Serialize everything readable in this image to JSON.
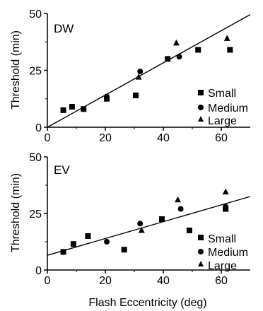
{
  "chart_data": [
    {
      "type": "scatter",
      "panel_label": "DW",
      "xlabel": "",
      "ylabel": "Threshold (min)",
      "xlim": [
        0,
        70
      ],
      "ylim": [
        0,
        50
      ],
      "x_ticks": [
        "0",
        "20",
        "40",
        "60"
      ],
      "y_ticks": [
        "0",
        "25",
        "50"
      ],
      "legend_position": "bottom-right",
      "legend": [
        {
          "name": "Small",
          "marker": "square"
        },
        {
          "name": "Medium",
          "marker": "circle"
        },
        {
          "name": "Large",
          "marker": "triangle"
        }
      ],
      "series": [
        {
          "name": "Small",
          "marker": "square",
          "points": [
            [
              5.5,
              7.5
            ],
            [
              8.5,
              9
            ],
            [
              12.5,
              8
            ],
            [
              20.5,
              12.5
            ],
            [
              30.5,
              14
            ],
            [
              41.5,
              30
            ],
            [
              52,
              34
            ],
            [
              63,
              34
            ]
          ]
        },
        {
          "name": "Medium",
          "marker": "circle",
          "points": [
            [
              20.5,
              13.5
            ],
            [
              32,
              24.5
            ],
            [
              45.5,
              31
            ]
          ]
        },
        {
          "name": "Large",
          "marker": "triangle",
          "points": [
            [
              31.5,
              22
            ],
            [
              44.5,
              37
            ],
            [
              62,
              39
            ]
          ]
        }
      ],
      "fit_line": {
        "x": [
          0,
          70
        ],
        "y": [
          0,
          49.5
        ]
      }
    },
    {
      "type": "scatter",
      "panel_label": "EV",
      "xlabel": "Flash Eccentricity (deg)",
      "ylabel": "Threshold (min)",
      "xlim": [
        0,
        70
      ],
      "ylim": [
        0,
        50
      ],
      "x_ticks": [
        "0",
        "20",
        "40",
        "60"
      ],
      "y_ticks": [
        "0",
        "25",
        "50"
      ],
      "legend_position": "bottom-right",
      "legend": [
        {
          "name": "Small",
          "marker": "square"
        },
        {
          "name": "Medium",
          "marker": "circle"
        },
        {
          "name": "Large",
          "marker": "triangle"
        }
      ],
      "series": [
        {
          "name": "Small",
          "marker": "square",
          "points": [
            [
              5.5,
              8
            ],
            [
              9,
              11.5
            ],
            [
              14,
              15
            ],
            [
              26.5,
              9
            ],
            [
              39.5,
              22.5
            ],
            [
              49,
              17.5
            ],
            [
              61.5,
              27
            ]
          ]
        },
        {
          "name": "Medium",
          "marker": "circle",
          "points": [
            [
              20.5,
              12.5
            ],
            [
              32,
              20.5
            ],
            [
              46,
              27
            ],
            [
              61.5,
              28
            ]
          ]
        },
        {
          "name": "Large",
          "marker": "triangle",
          "points": [
            [
              32.5,
              17.5
            ],
            [
              45,
              31
            ],
            [
              61.5,
              34.5
            ]
          ]
        }
      ],
      "fit_line": {
        "x": [
          0,
          70
        ],
        "y": [
          6.5,
          32.5
        ]
      }
    }
  ]
}
